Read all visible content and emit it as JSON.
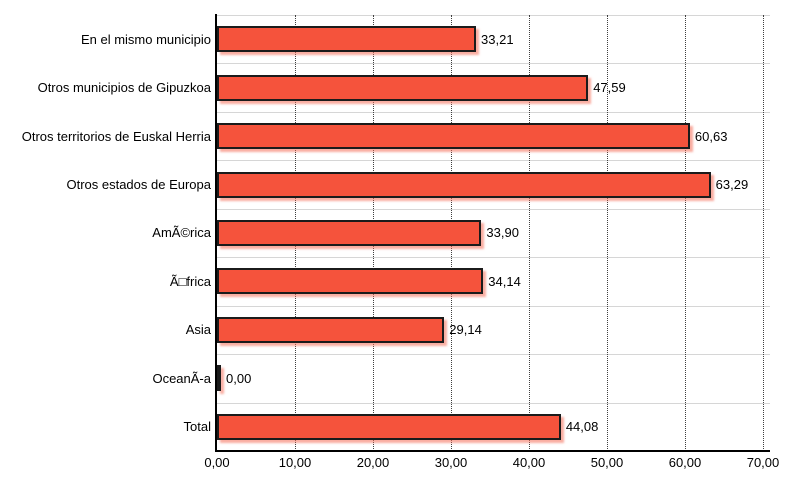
{
  "chart_data": {
    "type": "bar",
    "orientation": "horizontal",
    "title": "",
    "xlabel": "",
    "ylabel": "",
    "legend": "none",
    "grid": {
      "vertical": "dotted dark gray at each x tick",
      "horizontal": "light gray solid at band boundaries"
    },
    "xlim": [
      0,
      70
    ],
    "x_tick_labels": [
      "0,00",
      "10,00",
      "20,00",
      "30,00",
      "40,00",
      "50,00",
      "60,00",
      "70,00"
    ],
    "categories": [
      "En el mismo municipio",
      "Otros municipios de Gipuzkoa",
      "Otros territorios de Euskal Herria",
      "Otros estados de Europa",
      "AmÃ©rica",
      "Ã□frica",
      "Asia",
      "OceanÃ-a",
      "Total"
    ],
    "values": [
      33.21,
      47.59,
      60.63,
      63.29,
      33.9,
      34.14,
      29.14,
      0.0,
      44.08
    ],
    "value_labels": [
      "33,21",
      "47,59",
      "60,63",
      "63,29",
      "33,90",
      "34,14",
      "29,14",
      "0,00",
      "44,08"
    ],
    "colors": {
      "bar_fill": "#F5533C",
      "bar_border": "#1B1B1B",
      "bar_shadow": "rgba(244,106,84,0.55)",
      "axis": "#000000",
      "vgrid": "#3F3F3F",
      "hgrid": "#D6D6D6",
      "text": "#000000",
      "background": "#FFFFFF"
    }
  }
}
